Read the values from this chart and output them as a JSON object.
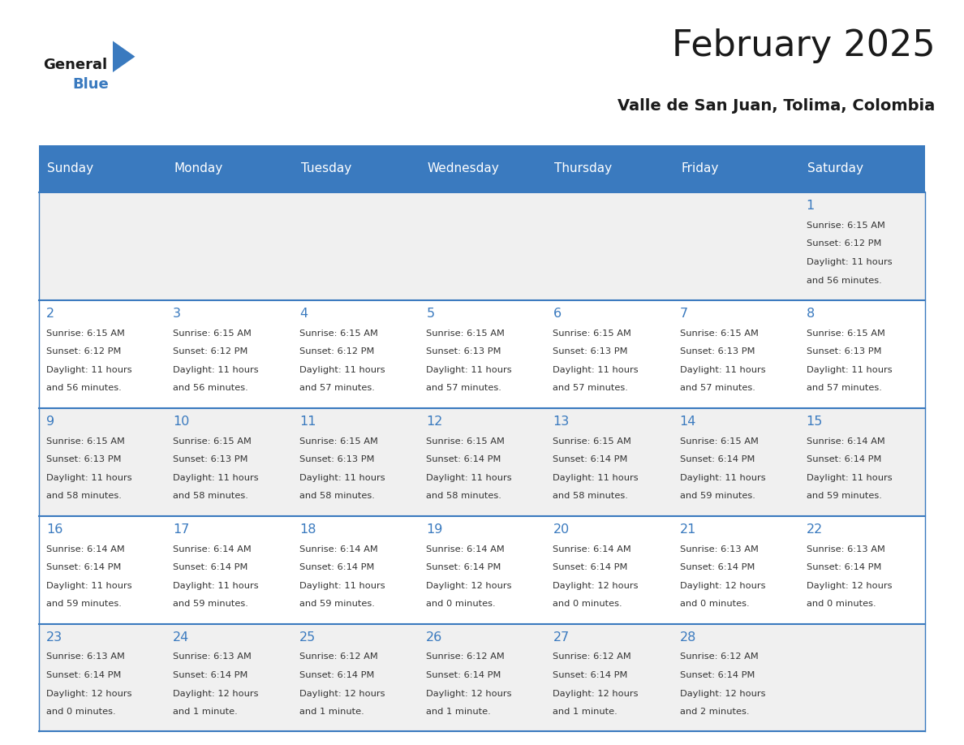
{
  "title": "February 2025",
  "subtitle": "Valle de San Juan, Tolima, Colombia",
  "header_color": "#3a7abf",
  "header_text_color": "#ffffff",
  "cell_bg_color": "#f0f0f0",
  "cell_alt_bg_color": "#ffffff",
  "day_number_color": "#3a7abf",
  "text_color": "#333333",
  "line_color": "#3a7abf",
  "days_of_week": [
    "Sunday",
    "Monday",
    "Tuesday",
    "Wednesday",
    "Thursday",
    "Friday",
    "Saturday"
  ],
  "weeks": [
    [
      {
        "day": null,
        "sunrise": null,
        "sunset": null,
        "daylight": null
      },
      {
        "day": null,
        "sunrise": null,
        "sunset": null,
        "daylight": null
      },
      {
        "day": null,
        "sunrise": null,
        "sunset": null,
        "daylight": null
      },
      {
        "day": null,
        "sunrise": null,
        "sunset": null,
        "daylight": null
      },
      {
        "day": null,
        "sunrise": null,
        "sunset": null,
        "daylight": null
      },
      {
        "day": null,
        "sunrise": null,
        "sunset": null,
        "daylight": null
      },
      {
        "day": 1,
        "sunrise": "6:15 AM",
        "sunset": "6:12 PM",
        "daylight": "11 hours\nand 56 minutes."
      }
    ],
    [
      {
        "day": 2,
        "sunrise": "6:15 AM",
        "sunset": "6:12 PM",
        "daylight": "11 hours\nand 56 minutes."
      },
      {
        "day": 3,
        "sunrise": "6:15 AM",
        "sunset": "6:12 PM",
        "daylight": "11 hours\nand 56 minutes."
      },
      {
        "day": 4,
        "sunrise": "6:15 AM",
        "sunset": "6:12 PM",
        "daylight": "11 hours\nand 57 minutes."
      },
      {
        "day": 5,
        "sunrise": "6:15 AM",
        "sunset": "6:13 PM",
        "daylight": "11 hours\nand 57 minutes."
      },
      {
        "day": 6,
        "sunrise": "6:15 AM",
        "sunset": "6:13 PM",
        "daylight": "11 hours\nand 57 minutes."
      },
      {
        "day": 7,
        "sunrise": "6:15 AM",
        "sunset": "6:13 PM",
        "daylight": "11 hours\nand 57 minutes."
      },
      {
        "day": 8,
        "sunrise": "6:15 AM",
        "sunset": "6:13 PM",
        "daylight": "11 hours\nand 57 minutes."
      }
    ],
    [
      {
        "day": 9,
        "sunrise": "6:15 AM",
        "sunset": "6:13 PM",
        "daylight": "11 hours\nand 58 minutes."
      },
      {
        "day": 10,
        "sunrise": "6:15 AM",
        "sunset": "6:13 PM",
        "daylight": "11 hours\nand 58 minutes."
      },
      {
        "day": 11,
        "sunrise": "6:15 AM",
        "sunset": "6:13 PM",
        "daylight": "11 hours\nand 58 minutes."
      },
      {
        "day": 12,
        "sunrise": "6:15 AM",
        "sunset": "6:14 PM",
        "daylight": "11 hours\nand 58 minutes."
      },
      {
        "day": 13,
        "sunrise": "6:15 AM",
        "sunset": "6:14 PM",
        "daylight": "11 hours\nand 58 minutes."
      },
      {
        "day": 14,
        "sunrise": "6:15 AM",
        "sunset": "6:14 PM",
        "daylight": "11 hours\nand 59 minutes."
      },
      {
        "day": 15,
        "sunrise": "6:14 AM",
        "sunset": "6:14 PM",
        "daylight": "11 hours\nand 59 minutes."
      }
    ],
    [
      {
        "day": 16,
        "sunrise": "6:14 AM",
        "sunset": "6:14 PM",
        "daylight": "11 hours\nand 59 minutes."
      },
      {
        "day": 17,
        "sunrise": "6:14 AM",
        "sunset": "6:14 PM",
        "daylight": "11 hours\nand 59 minutes."
      },
      {
        "day": 18,
        "sunrise": "6:14 AM",
        "sunset": "6:14 PM",
        "daylight": "11 hours\nand 59 minutes."
      },
      {
        "day": 19,
        "sunrise": "6:14 AM",
        "sunset": "6:14 PM",
        "daylight": "12 hours\nand 0 minutes."
      },
      {
        "day": 20,
        "sunrise": "6:14 AM",
        "sunset": "6:14 PM",
        "daylight": "12 hours\nand 0 minutes."
      },
      {
        "day": 21,
        "sunrise": "6:13 AM",
        "sunset": "6:14 PM",
        "daylight": "12 hours\nand 0 minutes."
      },
      {
        "day": 22,
        "sunrise": "6:13 AM",
        "sunset": "6:14 PM",
        "daylight": "12 hours\nand 0 minutes."
      }
    ],
    [
      {
        "day": 23,
        "sunrise": "6:13 AM",
        "sunset": "6:14 PM",
        "daylight": "12 hours\nand 0 minutes."
      },
      {
        "day": 24,
        "sunrise": "6:13 AM",
        "sunset": "6:14 PM",
        "daylight": "12 hours\nand 1 minute."
      },
      {
        "day": 25,
        "sunrise": "6:12 AM",
        "sunset": "6:14 PM",
        "daylight": "12 hours\nand 1 minute."
      },
      {
        "day": 26,
        "sunrise": "6:12 AM",
        "sunset": "6:14 PM",
        "daylight": "12 hours\nand 1 minute."
      },
      {
        "day": 27,
        "sunrise": "6:12 AM",
        "sunset": "6:14 PM",
        "daylight": "12 hours\nand 1 minute."
      },
      {
        "day": 28,
        "sunrise": "6:12 AM",
        "sunset": "6:14 PM",
        "daylight": "12 hours\nand 2 minutes."
      },
      {
        "day": null,
        "sunrise": null,
        "sunset": null,
        "daylight": null
      }
    ]
  ],
  "logo_text_general": "General",
  "logo_text_blue": "Blue",
  "logo_triangle_color": "#3a7abf",
  "background_color": "#ffffff"
}
